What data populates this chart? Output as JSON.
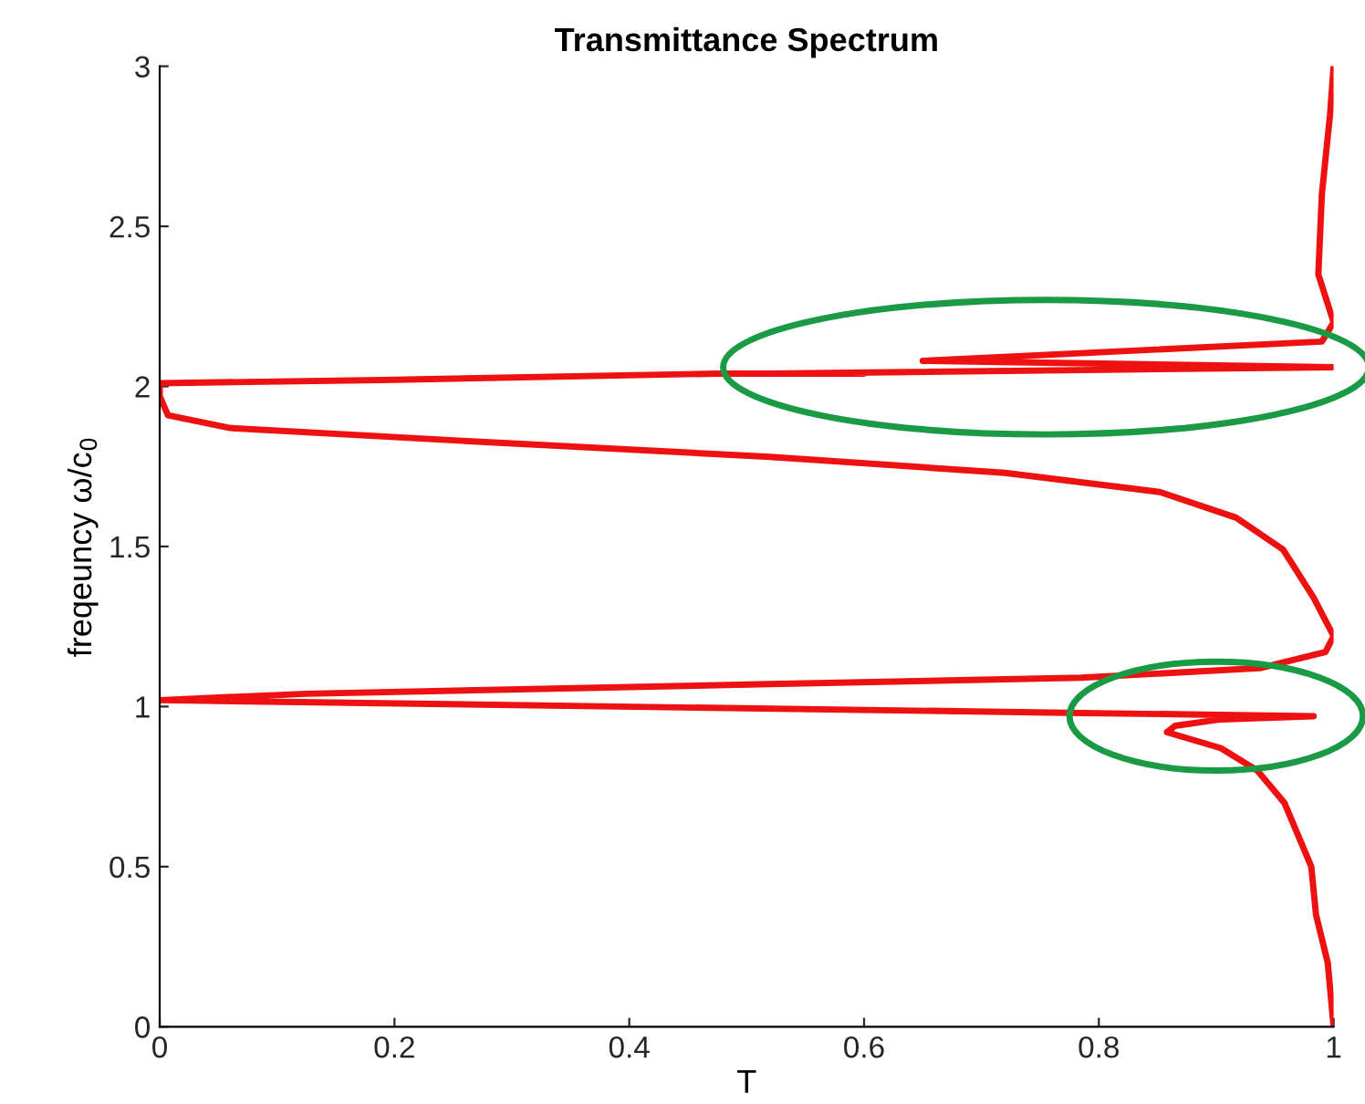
{
  "chart_data": {
    "type": "line",
    "title": "Transmittance Spectrum",
    "xlabel": "T",
    "ylabel": "freqeuncy ω/c$_{0}$",
    "series": [
      {
        "color": "#ee1111",
        "x": [
          1.0,
          0.995,
          0.985,
          0.981,
          0.958,
          0.935,
          0.904,
          0.858,
          0.865,
          0.904,
          0.983,
          0.785,
          0.39,
          0.0,
          0.125,
          0.52,
          0.785,
          0.937,
          0.993,
          1.0,
          0.983,
          0.957,
          0.917,
          0.852,
          0.72,
          0.52,
          0.258,
          0.06,
          0.007,
          0.0,
          0.0,
          0.19,
          0.475,
          0.6,
          0.52,
          1.0,
          0.65,
          0.99,
          1.0,
          0.987,
          0.99,
          0.997,
          1.0
        ],
        "values": [
          0.0,
          0.2,
          0.35,
          0.5,
          0.7,
          0.8,
          0.87,
          0.92,
          0.94,
          0.96,
          0.97,
          0.98,
          1.0,
          1.02,
          1.04,
          1.07,
          1.09,
          1.12,
          1.17,
          1.22,
          1.34,
          1.49,
          1.59,
          1.67,
          1.73,
          1.78,
          1.83,
          1.87,
          1.91,
          1.97,
          2.01,
          2.02,
          2.04,
          2.04,
          2.04,
          2.06,
          2.08,
          2.14,
          2.2,
          2.35,
          2.6,
          2.85,
          3.0
        ]
      }
    ],
    "xlim": [
      0,
      1
    ],
    "ylim": [
      0,
      3
    ],
    "xticks": [
      0,
      0.2,
      0.4,
      0.6,
      0.8,
      1
    ],
    "yticks": [
      0,
      0.5,
      1,
      1.5,
      2,
      2.5,
      3
    ],
    "grid": false,
    "legend": false,
    "marker": "none",
    "line_style": "solid"
  }
}
